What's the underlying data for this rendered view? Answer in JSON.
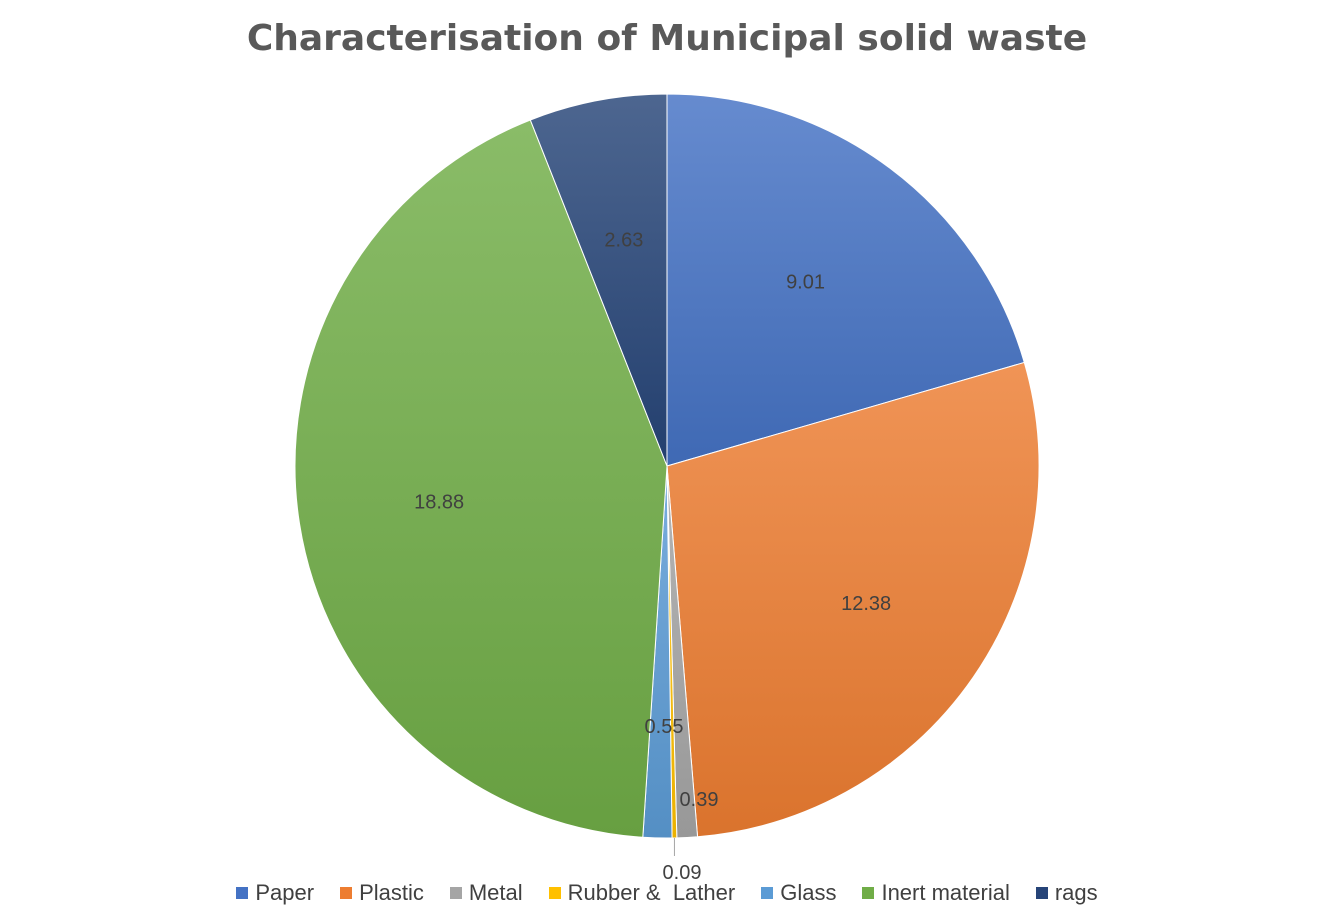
{
  "chart_data": {
    "type": "pie",
    "title": "Characterisation of Municipal solid waste",
    "categories": [
      "Paper",
      "Plastic",
      "Metal",
      "Rubber &  Lather",
      "Glass",
      "Inert material",
      "rags"
    ],
    "values": [
      9.01,
      12.38,
      0.39,
      0.09,
      0.55,
      18.88,
      2.63
    ],
    "data_labels": [
      "9.01",
      "12.38",
      "0.39",
      "0.09",
      "0.55",
      "18.88",
      "2.63"
    ],
    "colors": [
      "#4472C4",
      "#ED7D31",
      "#A5A5A5",
      "#FFC000",
      "#5B9BD5",
      "#70AD47",
      "#264478"
    ],
    "legend_position": "bottom",
    "start_angle": "12 o'clock",
    "direction": "clockwise"
  }
}
